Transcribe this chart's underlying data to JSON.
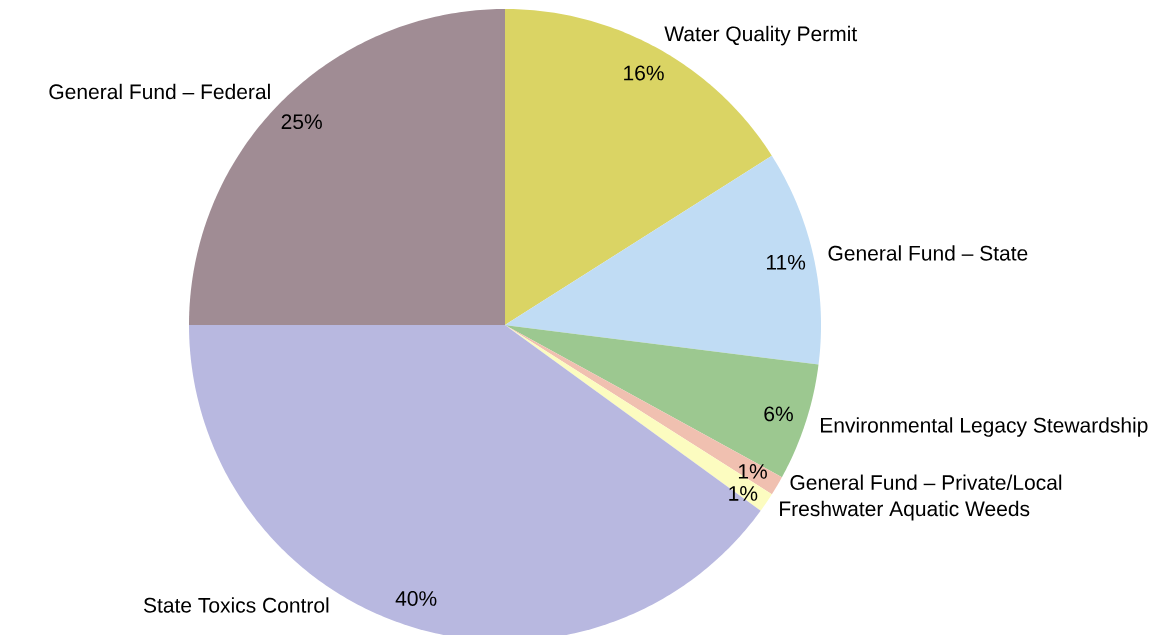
{
  "chart_data": {
    "type": "pie",
    "categories": [
      "Water Quality Permit",
      "General Fund – State",
      "Environmental Legacy Stewardship",
      "General Fund – Private/Local",
      "Freshwater Aquatic Weeds",
      "State Toxics Control",
      "General Fund – Federal"
    ],
    "values": [
      16,
      11,
      6,
      1,
      1,
      40,
      25
    ],
    "value_labels": [
      "16%",
      "11%",
      "6%",
      "1%",
      "1%",
      "40%",
      "25%"
    ],
    "colors": [
      "#dad464",
      "#c0dcf4",
      "#9cc890",
      "#f0c0b0",
      "#fcfcc0",
      "#b8b8e0",
      "#a08c94"
    ]
  }
}
